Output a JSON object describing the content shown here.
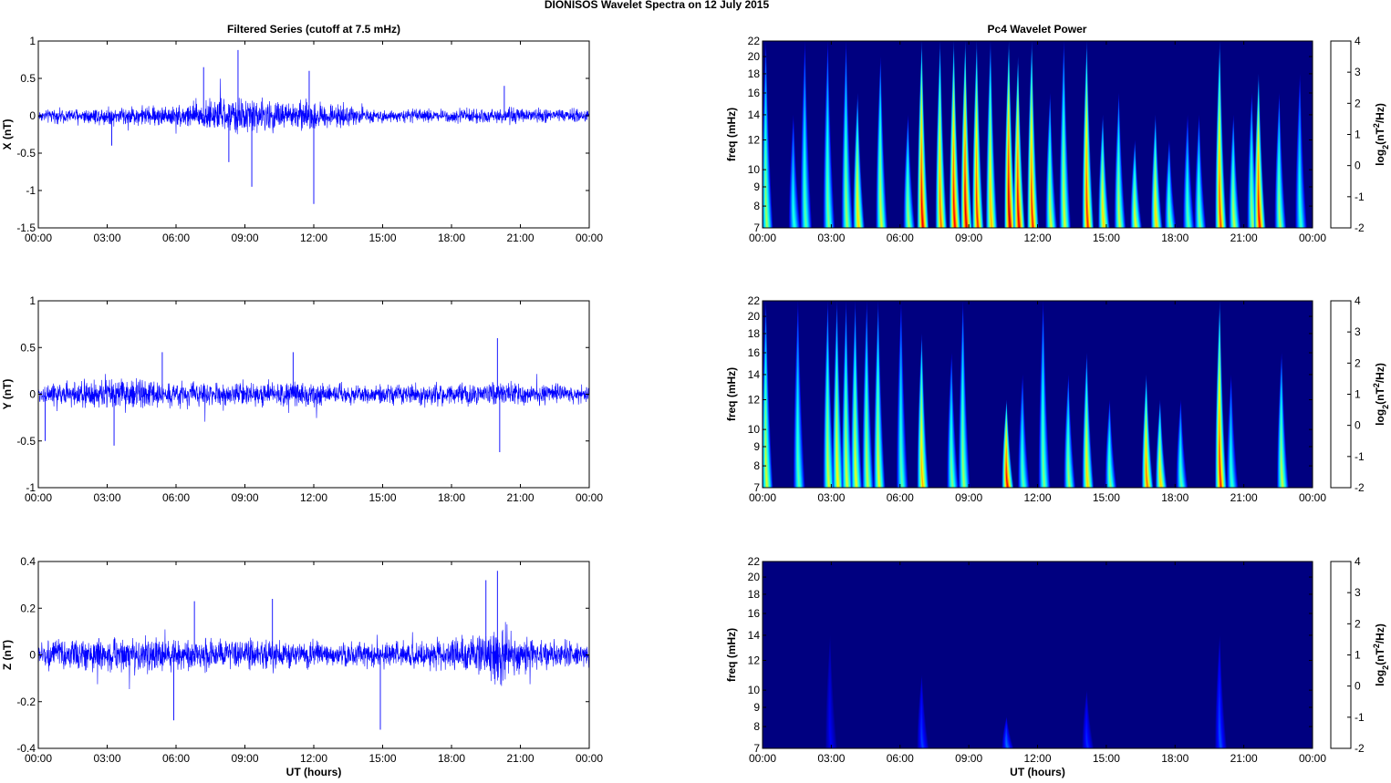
{
  "figure": {
    "suptitle": "DIONISOS Wavelet Spectra on 12 July      2015",
    "left_title": "Filtered Series (cutoff at 7.5 mHz)",
    "right_title": "Pc4 Wavelet Power"
  },
  "chart_data": [
    {
      "type": "line",
      "panel": "X",
      "title": "Filtered Series (cutoff at 7.5 mHz)",
      "ylabel": "X (nT)",
      "xlabel": "",
      "xlim_hours": [
        0,
        24
      ],
      "x_ticks": [
        "00:00",
        "03:00",
        "06:00",
        "09:00",
        "12:00",
        "15:00",
        "18:00",
        "21:00",
        "00:00"
      ],
      "ylim": [
        -1.5,
        1
      ],
      "y_ticks": [
        1,
        0.5,
        0,
        -0.5,
        -1,
        -1.5
      ],
      "y_tick_labels": [
        "1",
        "0.5",
        "0",
        "-0.5",
        "-1",
        "-1.5"
      ],
      "color": "#0000ff",
      "noise_envelope": [
        {
          "hour": 0,
          "amp": 0.08
        },
        {
          "hour": 3,
          "amp": 0.13
        },
        {
          "hour": 6,
          "amp": 0.15
        },
        {
          "hour": 7,
          "amp": 0.22
        },
        {
          "hour": 9,
          "amp": 0.25
        },
        {
          "hour": 12,
          "amp": 0.2
        },
        {
          "hour": 15,
          "amp": 0.08
        },
        {
          "hour": 18,
          "amp": 0.1
        },
        {
          "hour": 21,
          "amp": 0.11
        },
        {
          "hour": 24,
          "amp": 0.09
        }
      ],
      "spikes": [
        {
          "hour": 7.2,
          "value": 0.65
        },
        {
          "hour": 8.7,
          "value": 0.88
        },
        {
          "hour": 9.3,
          "value": -0.95
        },
        {
          "hour": 11.8,
          "value": 0.6
        },
        {
          "hour": 12.0,
          "value": -1.18
        },
        {
          "hour": 8.3,
          "value": -0.62
        },
        {
          "hour": 20.3,
          "value": 0.4
        },
        {
          "hour": 3.2,
          "value": -0.4
        }
      ]
    },
    {
      "type": "line",
      "panel": "Y",
      "ylabel": "Y (nT)",
      "xlabel": "",
      "xlim_hours": [
        0,
        24
      ],
      "x_ticks": [
        "00:00",
        "03:00",
        "06:00",
        "09:00",
        "12:00",
        "15:00",
        "18:00",
        "21:00",
        "00:00"
      ],
      "ylim": [
        -1,
        1
      ],
      "y_ticks": [
        1,
        0.5,
        0,
        -0.5,
        -1
      ],
      "y_tick_labels": [
        "1",
        "0.5",
        "0",
        "-0.5",
        "-1"
      ],
      "color": "#0000ff",
      "noise_envelope": [
        {
          "hour": 0,
          "amp": 0.1
        },
        {
          "hour": 3,
          "amp": 0.2
        },
        {
          "hour": 5,
          "amp": 0.15
        },
        {
          "hour": 8,
          "amp": 0.12
        },
        {
          "hour": 11,
          "amp": 0.15
        },
        {
          "hour": 14,
          "amp": 0.1
        },
        {
          "hour": 18,
          "amp": 0.14
        },
        {
          "hour": 21,
          "amp": 0.12
        },
        {
          "hour": 24,
          "amp": 0.09
        }
      ],
      "spikes": [
        {
          "hour": 3.3,
          "value": -0.55
        },
        {
          "hour": 5.4,
          "value": 0.45
        },
        {
          "hour": 11.1,
          "value": 0.45
        },
        {
          "hour": 20.0,
          "value": 0.6
        },
        {
          "hour": 20.1,
          "value": -0.62
        },
        {
          "hour": 0.3,
          "value": -0.5
        }
      ]
    },
    {
      "type": "line",
      "panel": "Z",
      "ylabel": "Z (nT)",
      "xlabel": "UT (hours)",
      "xlim_hours": [
        0,
        24
      ],
      "x_ticks": [
        "00:00",
        "03:00",
        "06:00",
        "09:00",
        "12:00",
        "15:00",
        "18:00",
        "21:00",
        "00:00"
      ],
      "ylim": [
        -0.4,
        0.4
      ],
      "y_ticks": [
        0.4,
        0.2,
        0,
        -0.2,
        -0.4
      ],
      "y_tick_labels": [
        "0.4",
        "0.2",
        "0",
        "-0.2",
        "-0.4"
      ],
      "color": "#0000ff",
      "noise_envelope": [
        {
          "hour": 0,
          "amp": 0.06
        },
        {
          "hour": 3,
          "amp": 0.08
        },
        {
          "hour": 6,
          "amp": 0.07
        },
        {
          "hour": 9,
          "amp": 0.07
        },
        {
          "hour": 12,
          "amp": 0.06
        },
        {
          "hour": 15,
          "amp": 0.06
        },
        {
          "hour": 18,
          "amp": 0.07
        },
        {
          "hour": 19.5,
          "amp": 0.12
        },
        {
          "hour": 20.2,
          "amp": 0.15
        },
        {
          "hour": 21,
          "amp": 0.07
        },
        {
          "hour": 24,
          "amp": 0.06
        }
      ],
      "spikes": [
        {
          "hour": 19.5,
          "value": 0.32
        },
        {
          "hour": 20.0,
          "value": 0.36
        },
        {
          "hour": 5.9,
          "value": -0.28
        },
        {
          "hour": 14.9,
          "value": -0.32
        },
        {
          "hour": 6.8,
          "value": 0.23
        },
        {
          "hour": 10.2,
          "value": 0.24
        }
      ]
    },
    {
      "type": "heatmap",
      "panel": "X-wavelet",
      "title": "Pc4 Wavelet Power",
      "ylabel": "freq (mHz)",
      "xlabel": "",
      "xlim_hours": [
        0,
        24
      ],
      "x_ticks": [
        "00:00",
        "03:00",
        "06:00",
        "09:00",
        "12:00",
        "15:00",
        "18:00",
        "21:00",
        "00:00"
      ],
      "freq_range_mHz": [
        7,
        22
      ],
      "y_ticks": [
        7,
        8,
        9,
        10,
        12,
        14,
        16,
        18,
        20,
        22
      ],
      "y_scale": "log",
      "colorbar": {
        "label": "log2(nT^2/Hz)",
        "range": [
          -2,
          4
        ],
        "ticks": [
          4,
          3,
          2,
          1,
          0,
          -1,
          -2
        ],
        "colormap": "jet"
      },
      "background_level": -2,
      "bursts": [
        {
          "hour": 0.2,
          "level": 1.2,
          "top_mHz": 22
        },
        {
          "hour": 1.4,
          "level": 0.5,
          "top_mHz": 14
        },
        {
          "hour": 1.9,
          "level": 0.8,
          "top_mHz": 22
        },
        {
          "hour": 2.9,
          "level": 1.0,
          "top_mHz": 22
        },
        {
          "hour": 3.7,
          "level": 1.2,
          "top_mHz": 22
        },
        {
          "hour": 4.2,
          "level": 2.0,
          "top_mHz": 16
        },
        {
          "hour": 5.2,
          "level": 1.5,
          "top_mHz": 20
        },
        {
          "hour": 6.4,
          "level": 1.2,
          "top_mHz": 14
        },
        {
          "hour": 7.0,
          "level": 3.3,
          "top_mHz": 22
        },
        {
          "hour": 7.8,
          "level": 2.6,
          "top_mHz": 22
        },
        {
          "hour": 8.4,
          "level": 3.2,
          "top_mHz": 22
        },
        {
          "hour": 8.9,
          "level": 3.4,
          "top_mHz": 22
        },
        {
          "hour": 9.4,
          "level": 3.0,
          "top_mHz": 22
        },
        {
          "hour": 10.0,
          "level": 2.2,
          "top_mHz": 22
        },
        {
          "hour": 10.8,
          "level": 3.6,
          "top_mHz": 22
        },
        {
          "hour": 11.2,
          "level": 3.4,
          "top_mHz": 20
        },
        {
          "hour": 11.8,
          "level": 3.0,
          "top_mHz": 22
        },
        {
          "hour": 12.6,
          "level": 1.5,
          "top_mHz": 16
        },
        {
          "hour": 13.2,
          "level": 1.5,
          "top_mHz": 22
        },
        {
          "hour": 14.2,
          "level": 3.0,
          "top_mHz": 22
        },
        {
          "hour": 14.9,
          "level": 2.0,
          "top_mHz": 14
        },
        {
          "hour": 15.6,
          "level": 1.4,
          "top_mHz": 16
        },
        {
          "hour": 16.3,
          "level": 1.6,
          "top_mHz": 12
        },
        {
          "hour": 17.2,
          "level": 2.0,
          "top_mHz": 14
        },
        {
          "hour": 17.8,
          "level": 1.0,
          "top_mHz": 12
        },
        {
          "hour": 18.6,
          "level": 0.8,
          "top_mHz": 14
        },
        {
          "hour": 19.1,
          "level": 1.0,
          "top_mHz": 14
        },
        {
          "hour": 20.0,
          "level": 2.8,
          "top_mHz": 22
        },
        {
          "hour": 20.6,
          "level": 1.4,
          "top_mHz": 14
        },
        {
          "hour": 21.4,
          "level": 1.2,
          "top_mHz": 16
        },
        {
          "hour": 21.7,
          "level": 3.2,
          "top_mHz": 18
        },
        {
          "hour": 22.6,
          "level": 1.2,
          "top_mHz": 16
        },
        {
          "hour": 23.5,
          "level": 0.6,
          "top_mHz": 18
        }
      ]
    },
    {
      "type": "heatmap",
      "panel": "Y-wavelet",
      "ylabel": "freq (mHz)",
      "xlabel": "",
      "xlim_hours": [
        0,
        24
      ],
      "x_ticks": [
        "00:00",
        "03:00",
        "06:00",
        "09:00",
        "12:00",
        "15:00",
        "18:00",
        "21:00",
        "00:00"
      ],
      "freq_range_mHz": [
        7,
        22
      ],
      "y_ticks": [
        7,
        8,
        9,
        10,
        12,
        14,
        16,
        18,
        20,
        22
      ],
      "y_scale": "log",
      "colorbar": {
        "label": "log2(nT^2/Hz)",
        "range": [
          -2,
          4
        ],
        "ticks": [
          4,
          3,
          2,
          1,
          0,
          -1,
          -2
        ],
        "colormap": "jet"
      },
      "background_level": -2,
      "bursts": [
        {
          "hour": 0.2,
          "level": 1.5,
          "top_mHz": 22
        },
        {
          "hour": 1.6,
          "level": 0.8,
          "top_mHz": 22
        },
        {
          "hour": 2.9,
          "level": 1.5,
          "top_mHz": 22
        },
        {
          "hour": 3.3,
          "level": 1.8,
          "top_mHz": 22
        },
        {
          "hour": 3.7,
          "level": 1.5,
          "top_mHz": 22
        },
        {
          "hour": 4.1,
          "level": 1.6,
          "top_mHz": 22
        },
        {
          "hour": 4.6,
          "level": 1.4,
          "top_mHz": 22
        },
        {
          "hour": 5.1,
          "level": 1.6,
          "top_mHz": 22
        },
        {
          "hour": 6.1,
          "level": 0.8,
          "top_mHz": 22
        },
        {
          "hour": 7.0,
          "level": 2.2,
          "top_mHz": 18
        },
        {
          "hour": 8.3,
          "level": 1.0,
          "top_mHz": 16
        },
        {
          "hour": 8.8,
          "level": 1.2,
          "top_mHz": 22
        },
        {
          "hour": 10.7,
          "level": 3.2,
          "top_mHz": 12
        },
        {
          "hour": 11.4,
          "level": 0.8,
          "top_mHz": 14
        },
        {
          "hour": 12.3,
          "level": 1.0,
          "top_mHz": 22
        },
        {
          "hour": 13.4,
          "level": 1.2,
          "top_mHz": 14
        },
        {
          "hour": 14.2,
          "level": 2.0,
          "top_mHz": 16
        },
        {
          "hour": 15.2,
          "level": 1.0,
          "top_mHz": 12
        },
        {
          "hour": 16.8,
          "level": 2.6,
          "top_mHz": 14
        },
        {
          "hour": 17.4,
          "level": 2.0,
          "top_mHz": 12
        },
        {
          "hour": 18.3,
          "level": 0.8,
          "top_mHz": 12
        },
        {
          "hour": 20.0,
          "level": 3.0,
          "top_mHz": 22
        },
        {
          "hour": 20.5,
          "level": 0.6,
          "top_mHz": 14
        },
        {
          "hour": 22.7,
          "level": 1.4,
          "top_mHz": 16
        }
      ]
    },
    {
      "type": "heatmap",
      "panel": "Z-wavelet",
      "ylabel": "freq (mHz)",
      "xlabel": "UT (hours)",
      "xlim_hours": [
        0,
        24
      ],
      "x_ticks": [
        "00:00",
        "03:00",
        "06:00",
        "09:00",
        "12:00",
        "15:00",
        "18:00",
        "21:00",
        "00:00"
      ],
      "freq_range_mHz": [
        7,
        22
      ],
      "y_ticks": [
        7,
        8,
        9,
        10,
        12,
        14,
        16,
        18,
        20,
        22
      ],
      "y_scale": "log",
      "colorbar": {
        "label": "log2(nT^2/Hz)",
        "range": [
          -2,
          4
        ],
        "ticks": [
          4,
          3,
          2,
          1,
          0,
          -1,
          -2
        ],
        "colormap": "jet"
      },
      "background_level": -2,
      "bursts": [
        {
          "hour": 3.0,
          "level": -1.3,
          "top_mHz": 14
        },
        {
          "hour": 7.0,
          "level": -0.9,
          "top_mHz": 11
        },
        {
          "hour": 10.7,
          "level": -0.6,
          "top_mHz": 8.5
        },
        {
          "hour": 14.2,
          "level": -1.0,
          "top_mHz": 10
        },
        {
          "hour": 20.0,
          "level": -0.8,
          "top_mHz": 14
        }
      ]
    }
  ]
}
